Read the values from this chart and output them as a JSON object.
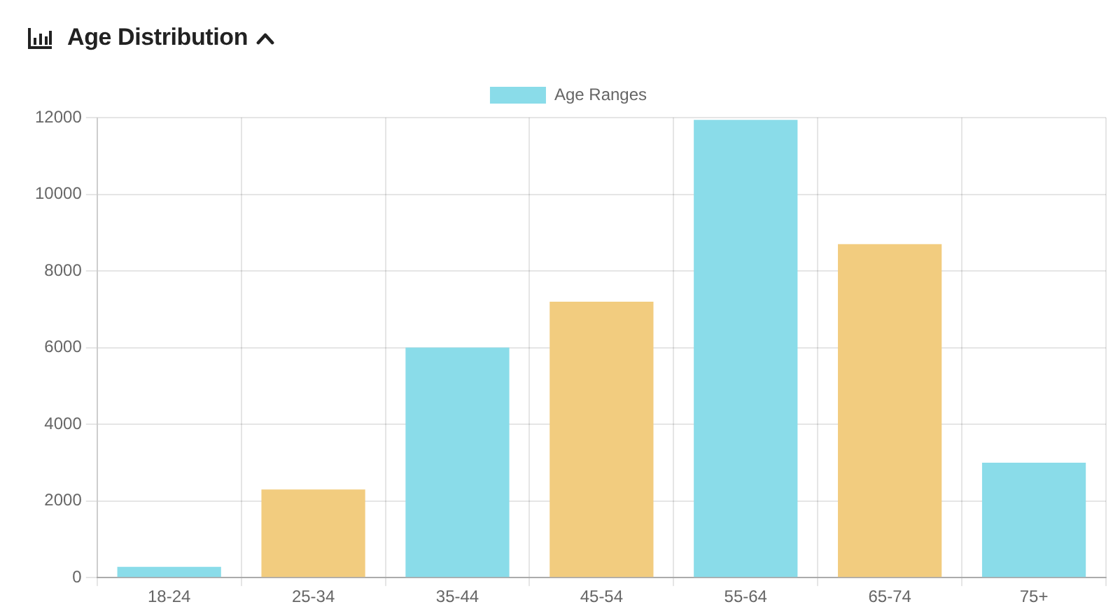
{
  "chart_data": {
    "type": "bar",
    "title": "Age Distribution",
    "categories": [
      "18-24",
      "25-34",
      "35-44",
      "45-54",
      "55-64",
      "65-74",
      "75+"
    ],
    "series": [
      {
        "name": "Age Ranges",
        "colors": [
          "#8adce9",
          "#f2cc7f",
          "#8adce9",
          "#f2cc7f",
          "#8adce9",
          "#f2cc7f",
          "#8adce9"
        ],
        "values": [
          280,
          2300,
          6000,
          7200,
          11940,
          8700,
          3000
        ]
      }
    ],
    "ylim": [
      0,
      12000
    ],
    "yticks": [
      0,
      2000,
      4000,
      6000,
      8000,
      10000,
      12000
    ],
    "grid": true,
    "legend": "top"
  }
}
